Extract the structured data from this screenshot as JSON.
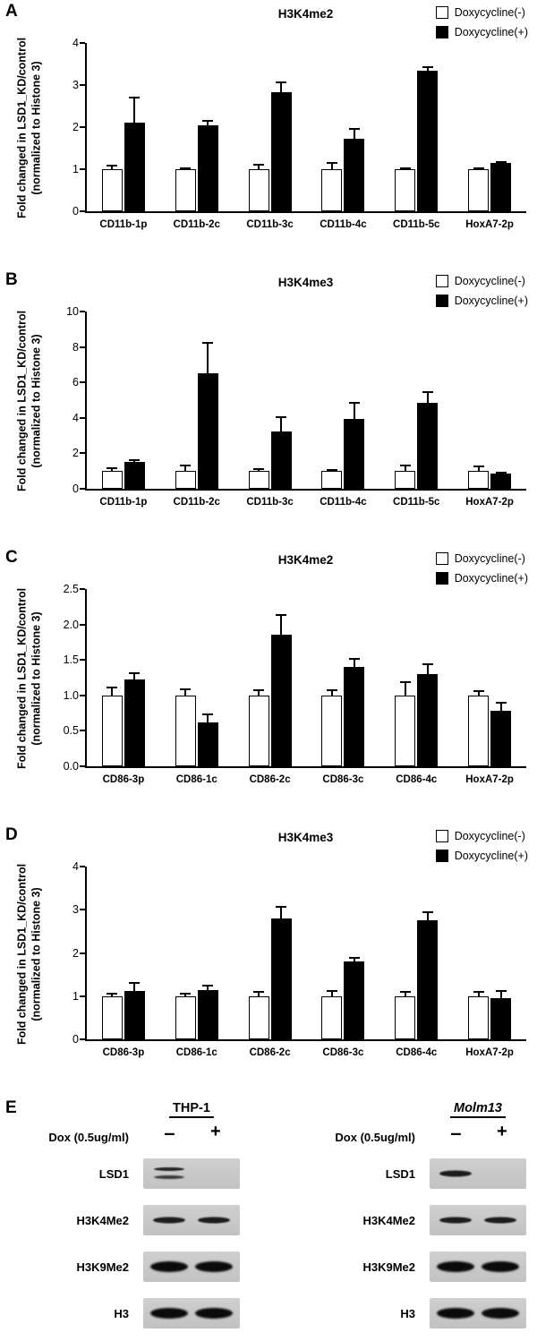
{
  "chart_data": [
    {
      "type": "bar",
      "panel": "A",
      "title": "H3K4me2",
      "ylabel_line1": "Fold changed in LSD1_KD/control",
      "ylabel_line2": "(normalized to Histone 3)",
      "ylim": [
        0,
        4
      ],
      "yticks": [
        0,
        1,
        2,
        3,
        4
      ],
      "ytick_labels": [
        "0",
        "1",
        "2",
        "3",
        "4"
      ],
      "categories": [
        "CD11b-1p",
        "CD11b-2c",
        "CD11b-3c",
        "CD11b-4c",
        "CD11b-5c",
        "HoxA7-2p"
      ],
      "legend_position": "top-right",
      "series": [
        {
          "name": "Doxycycline(-)",
          "fill": "#ffffff",
          "values": [
            1.0,
            1.0,
            1.0,
            1.0,
            1.0,
            1.0
          ],
          "errors": [
            0.1,
            0.05,
            0.12,
            0.18,
            0.05,
            0.05
          ]
        },
        {
          "name": "Doxycycline(+)",
          "fill": "#000000",
          "values": [
            2.1,
            2.05,
            2.82,
            1.72,
            3.35,
            1.15
          ],
          "errors": [
            0.62,
            0.12,
            0.27,
            0.25,
            0.1,
            0.04
          ]
        }
      ]
    },
    {
      "type": "bar",
      "panel": "B",
      "title": "H3K4me3",
      "ylabel_line1": "Fold changed in LSD1_KD/control",
      "ylabel_line2": "(normalized to Histone 3)",
      "ylim": [
        0,
        10
      ],
      "yticks": [
        0,
        2,
        4,
        6,
        8,
        10
      ],
      "ytick_labels": [
        "0",
        "2",
        "4",
        "6",
        "8",
        "10"
      ],
      "categories": [
        "CD11b-1p",
        "CD11b-2c",
        "CD11b-3c",
        "CD11b-4c",
        "CD11b-5c",
        "HoxA7-2p"
      ],
      "legend_position": "top-right",
      "series": [
        {
          "name": "Doxycycline(-)",
          "fill": "#ffffff",
          "values": [
            1.0,
            1.0,
            1.0,
            1.0,
            1.0,
            1.0
          ],
          "errors": [
            0.2,
            0.35,
            0.15,
            0.1,
            0.35,
            0.3
          ]
        },
        {
          "name": "Doxycycline(+)",
          "fill": "#000000",
          "values": [
            1.5,
            6.5,
            3.25,
            3.95,
            4.85,
            0.85
          ],
          "errors": [
            0.15,
            1.8,
            0.85,
            0.95,
            0.65,
            0.12
          ]
        }
      ]
    },
    {
      "type": "bar",
      "panel": "C",
      "title": "H3K4me2",
      "ylabel_line1": "Fold changed in LSD1_KD/control",
      "ylabel_line2": "(normalized to Histone 3)",
      "ylim": [
        0,
        2.5
      ],
      "yticks": [
        0,
        0.5,
        1.0,
        1.5,
        2.0,
        2.5
      ],
      "ytick_labels": [
        "0.0",
        "0.5",
        "1.0",
        "1.5",
        "2.0",
        "2.5"
      ],
      "categories": [
        "CD86-3p",
        "CD86-1c",
        "CD86-2c",
        "CD86-3c",
        "CD86-4c",
        "HoxA7-2p"
      ],
      "legend_position": "top-right",
      "series": [
        {
          "name": "Doxycycline(-)",
          "fill": "#ffffff",
          "values": [
            1.0,
            1.0,
            1.0,
            1.0,
            1.0,
            1.0
          ],
          "errors": [
            0.13,
            0.1,
            0.08,
            0.08,
            0.2,
            0.07
          ]
        },
        {
          "name": "Doxycycline(+)",
          "fill": "#000000",
          "values": [
            1.22,
            0.62,
            1.85,
            1.4,
            1.3,
            0.78
          ],
          "errors": [
            0.1,
            0.12,
            0.3,
            0.13,
            0.15,
            0.13
          ]
        }
      ]
    },
    {
      "type": "bar",
      "panel": "D",
      "title": "H3K4me3",
      "ylabel_line1": "Fold changed in LSD1_KD/control",
      "ylabel_line2": "(normalized to Histone 3)",
      "ylim": [
        0,
        4
      ],
      "yticks": [
        0,
        1,
        2,
        3,
        4
      ],
      "ytick_labels": [
        "0",
        "1",
        "2",
        "3",
        "4"
      ],
      "categories": [
        "CD86-3p",
        "CD86-1c",
        "CD86-2c",
        "CD86-3c",
        "CD86-4c",
        "HoxA7-2p"
      ],
      "legend_position": "top-right",
      "series": [
        {
          "name": "Doxycycline(-)",
          "fill": "#ffffff",
          "values": [
            1.0,
            1.0,
            1.0,
            1.0,
            1.0,
            1.0
          ],
          "errors": [
            0.08,
            0.07,
            0.12,
            0.15,
            0.12,
            0.12
          ]
        },
        {
          "name": "Doxycycline(+)",
          "fill": "#000000",
          "values": [
            1.12,
            1.15,
            2.8,
            1.8,
            2.75,
            0.95
          ],
          "errors": [
            0.2,
            0.12,
            0.28,
            0.1,
            0.22,
            0.2
          ]
        }
      ]
    }
  ],
  "blot_panel": {
    "letter": "E",
    "dox_label": "Dox (0.5ug/ml)",
    "lane_minus": "–",
    "lane_plus": "+",
    "groups": [
      {
        "cell_line": "THP-1",
        "rows": [
          {
            "label": "LSD1",
            "lanes": [
              "doublet",
              "none"
            ]
          },
          {
            "label": "H3K4Me2",
            "lanes": [
              "medium",
              "medium"
            ]
          },
          {
            "label": "H3K9Me2",
            "lanes": [
              "strong",
              "strong"
            ]
          },
          {
            "label": "H3",
            "lanes": [
              "strong",
              "strong"
            ]
          }
        ]
      },
      {
        "cell_line": "Molm13",
        "rows": [
          {
            "label": "LSD1",
            "lanes": [
              "medium",
              "none"
            ]
          },
          {
            "label": "H3K4Me2",
            "lanes": [
              "medium",
              "medium"
            ]
          },
          {
            "label": "H3K9Me2",
            "lanes": [
              "strong",
              "strong"
            ]
          },
          {
            "label": "H3",
            "lanes": [
              "strong",
              "strong"
            ]
          }
        ]
      }
    ]
  }
}
